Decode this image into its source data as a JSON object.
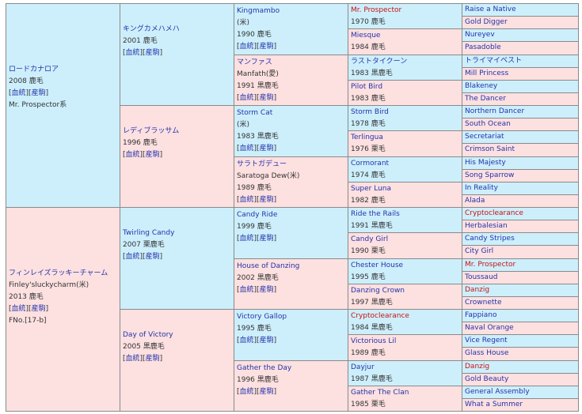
{
  "gen1": [
    {
      "name": "ロードカナロア",
      "lines": [
        "2008 鹿毛"
      ],
      "links": [
        "血統",
        "産駒"
      ],
      "extra": "Mr. Prospector系"
    },
    {
      "name": "フィンレイズラッキーチャーム",
      "lines": [
        "Finley'sluckycharm(米)",
        "2013 鹿毛"
      ],
      "links": [
        "血統",
        "産駒"
      ],
      "extra": "FNo.[17-b]"
    }
  ],
  "gen2": [
    {
      "name": "キングカメハメハ",
      "lines": [
        "2001 鹿毛"
      ],
      "links": [
        "血統",
        "産駒"
      ]
    },
    {
      "name": "レディブラッサム",
      "lines": [
        "1996 鹿毛"
      ],
      "links": [
        "血統",
        "産駒"
      ]
    },
    {
      "name": "Twirling Candy",
      "lines": [
        "2007 栗鹿毛"
      ],
      "links": [
        "血統",
        "産駒"
      ]
    },
    {
      "name": "Day of Victory",
      "lines": [
        "2005 黒鹿毛"
      ],
      "links": [
        "血統",
        "産駒"
      ]
    }
  ],
  "gen3": [
    {
      "name": "Kingmambo",
      "lines": [
        "(米)",
        "1990 鹿毛"
      ],
      "links": [
        "血統",
        "産駒"
      ]
    },
    {
      "name": "マンファス",
      "lines": [
        "Manfath(愛)",
        "1991 黒鹿毛"
      ],
      "links": [
        "血統",
        "産駒"
      ]
    },
    {
      "name": "Storm Cat",
      "lines": [
        "(米)",
        "1983 黒鹿毛"
      ],
      "links": [
        "血統",
        "産駒"
      ]
    },
    {
      "name": "サラトガデュー",
      "lines": [
        "Saratoga Dew(米)",
        "1989 鹿毛"
      ],
      "links": [
        "血統",
        "産駒"
      ]
    },
    {
      "name": "Candy Ride",
      "lines": [
        "1999 鹿毛"
      ],
      "links": [
        "血統",
        "産駒"
      ]
    },
    {
      "name": "House of Danzing",
      "lines": [
        "2002 黒鹿毛"
      ],
      "links": [
        "血統",
        "産駒"
      ]
    },
    {
      "name": "Victory Gallop",
      "lines": [
        "1995 鹿毛"
      ],
      "links": [
        "血統",
        "産駒"
      ]
    },
    {
      "name": "Gather the Day",
      "lines": [
        "1996 黒鹿毛"
      ],
      "links": [
        "血統",
        "産駒"
      ]
    }
  ],
  "gen4": [
    {
      "name": "Mr. Prospector",
      "year": "1970 鹿毛",
      "red": true
    },
    {
      "name": "Miesque",
      "year": "1984 鹿毛",
      "red": false
    },
    {
      "name": "ラストタイクーン",
      "year": "1983 黒鹿毛",
      "red": false
    },
    {
      "name": "Pilot Bird",
      "year": "1983 鹿毛",
      "red": false
    },
    {
      "name": "Storm Bird",
      "year": "1978 鹿毛",
      "red": false
    },
    {
      "name": "Terlingua",
      "year": "1976 栗毛",
      "red": false
    },
    {
      "name": "Cormorant",
      "year": "1974 鹿毛",
      "red": false
    },
    {
      "name": "Super Luna",
      "year": "1982 鹿毛",
      "red": false
    },
    {
      "name": "Ride the Rails",
      "year": "1991 黒鹿毛",
      "red": false
    },
    {
      "name": "Candy Girl",
      "year": "1990 栗毛",
      "red": false
    },
    {
      "name": "Chester House",
      "year": "1995 鹿毛",
      "red": false
    },
    {
      "name": "Danzing Crown",
      "year": "1997 黒鹿毛",
      "red": false
    },
    {
      "name": "Cryptoclearance",
      "year": "1984 黒鹿毛",
      "red": true
    },
    {
      "name": "Victorious Lil",
      "year": "1989 鹿毛",
      "red": false
    },
    {
      "name": "Dayjur",
      "year": "1987 黒鹿毛",
      "red": false
    },
    {
      "name": "Gather The Clan",
      "year": "1985 栗毛",
      "red": false
    }
  ],
  "gen5": [
    {
      "name": "Raise a Native",
      "red": false
    },
    {
      "name": "Gold Digger",
      "red": false
    },
    {
      "name": "Nureyev",
      "red": false
    },
    {
      "name": "Pasadoble",
      "red": false
    },
    {
      "name": "トライマイベスト",
      "red": false
    },
    {
      "name": "Mill Princess",
      "red": false
    },
    {
      "name": "Blakeney",
      "red": false
    },
    {
      "name": "The Dancer",
      "red": false
    },
    {
      "name": "Northern Dancer",
      "red": false
    },
    {
      "name": "South Ocean",
      "red": false
    },
    {
      "name": "Secretariat",
      "red": false
    },
    {
      "name": "Crimson Saint",
      "red": false
    },
    {
      "name": "His Majesty",
      "red": false
    },
    {
      "name": "Song Sparrow",
      "red": false
    },
    {
      "name": "In Reality",
      "red": false
    },
    {
      "name": "Alada",
      "red": false
    },
    {
      "name": "Cryptoclearance",
      "red": true
    },
    {
      "name": "Herbalesian",
      "red": false
    },
    {
      "name": "Candy Stripes",
      "red": false
    },
    {
      "name": "City Girl",
      "red": false
    },
    {
      "name": "Mr. Prospector",
      "red": true
    },
    {
      "name": "Toussaud",
      "red": false
    },
    {
      "name": "Danzig",
      "red": true
    },
    {
      "name": "Crownette",
      "red": false
    },
    {
      "name": "Fappiano",
      "red": false
    },
    {
      "name": "Naval Orange",
      "red": false
    },
    {
      "name": "Vice Regent",
      "red": false
    },
    {
      "name": "Glass House",
      "red": false
    },
    {
      "name": "Danzig",
      "red": true
    },
    {
      "name": "Gold Beauty",
      "red": false
    },
    {
      "name": "General Assembly",
      "red": false
    },
    {
      "name": "What a Summer",
      "red": false
    }
  ]
}
